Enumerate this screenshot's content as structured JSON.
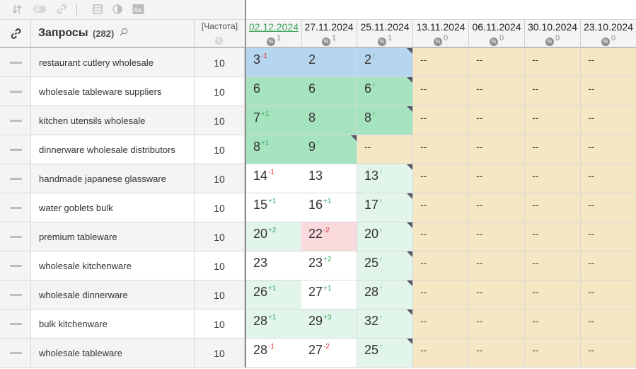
{
  "toolbar": {
    "icons": [
      "sort-icon",
      "toggle-icon",
      "link-icon",
      "table-icon",
      "contrast-icon",
      "font-icon"
    ]
  },
  "header": {
    "link_icon": "link-icon",
    "title": "Запросы",
    "count": "(282)",
    "search_icon": "magnifier-icon",
    "freq_label": "[Частота]",
    "globe_icon": "globe-icon",
    "dates": [
      {
        "label": "02.12.2024",
        "active": true,
        "pct": "1"
      },
      {
        "label": "27.11.2024",
        "active": false,
        "pct": "1"
      },
      {
        "label": "25.11.2024",
        "active": false,
        "pct": "1"
      },
      {
        "label": "13.11.2024",
        "active": false,
        "pct": "0"
      },
      {
        "label": "06.11.2024",
        "active": false,
        "pct": "0"
      },
      {
        "label": "30.10.2024",
        "active": false,
        "pct": "0"
      },
      {
        "label": "23.10.2024",
        "active": false,
        "pct": "0"
      }
    ]
  },
  "colors": {
    "blue": "#b6d6ef",
    "green": "#a6e4c0",
    "lightgreen": "#e1f5ea",
    "pink": "#fadadd",
    "tan": "#f5e6c4",
    "white": "#ffffff",
    "up_arrow": "#3aa55a",
    "down_delta": "#e0393e"
  },
  "rows": [
    {
      "query": "restaurant cutlery wholesale",
      "freq": "10",
      "positions": [
        {
          "v": "3",
          "d": "-1",
          "t": "neg",
          "bg": "blue"
        },
        {
          "v": "2",
          "d": "",
          "t": "",
          "bg": "blue"
        },
        {
          "v": "2",
          "d": "↑",
          "t": "up",
          "bg": "blue",
          "tri": true
        },
        {
          "v": "--",
          "bg": "tan"
        },
        {
          "v": "--",
          "bg": "tan"
        },
        {
          "v": "--",
          "bg": "tan"
        },
        {
          "v": "--",
          "bg": "tan"
        }
      ]
    },
    {
      "query": "wholesale tableware suppliers",
      "freq": "10",
      "positions": [
        {
          "v": "6",
          "d": "",
          "t": "",
          "bg": "green"
        },
        {
          "v": "6",
          "d": "",
          "t": "",
          "bg": "green"
        },
        {
          "v": "6",
          "d": "↑",
          "t": "up",
          "bg": "green",
          "tri": true
        },
        {
          "v": "--",
          "bg": "tan"
        },
        {
          "v": "--",
          "bg": "tan"
        },
        {
          "v": "--",
          "bg": "tan"
        },
        {
          "v": "--",
          "bg": "tan"
        }
      ]
    },
    {
      "query": "kitchen utensils wholesale",
      "freq": "10",
      "positions": [
        {
          "v": "7",
          "d": "+1",
          "t": "pos",
          "bg": "green"
        },
        {
          "v": "8",
          "d": "",
          "t": "",
          "bg": "green"
        },
        {
          "v": "8",
          "d": "↑",
          "t": "up",
          "bg": "green",
          "tri": true
        },
        {
          "v": "--",
          "bg": "tan"
        },
        {
          "v": "--",
          "bg": "tan"
        },
        {
          "v": "--",
          "bg": "tan"
        },
        {
          "v": "--",
          "bg": "tan"
        }
      ]
    },
    {
      "query": "dinnerware wholesale distributors",
      "freq": "10",
      "positions": [
        {
          "v": "8",
          "d": "+1",
          "t": "pos",
          "bg": "green"
        },
        {
          "v": "9",
          "d": "↑",
          "t": "up",
          "bg": "green",
          "tri": true
        },
        {
          "v": "--",
          "bg": "tan"
        },
        {
          "v": "--",
          "bg": "tan"
        },
        {
          "v": "--",
          "bg": "tan"
        },
        {
          "v": "--",
          "bg": "tan"
        },
        {
          "v": "--",
          "bg": "tan"
        }
      ]
    },
    {
      "query": "handmade japanese glassware",
      "freq": "10",
      "positions": [
        {
          "v": "14",
          "d": "-1",
          "t": "neg",
          "bg": "white"
        },
        {
          "v": "13",
          "d": "",
          "t": "",
          "bg": "white"
        },
        {
          "v": "13",
          "d": "↑",
          "t": "up",
          "bg": "lightgreen",
          "tri": true
        },
        {
          "v": "--",
          "bg": "tan"
        },
        {
          "v": "--",
          "bg": "tan"
        },
        {
          "v": "--",
          "bg": "tan"
        },
        {
          "v": "--",
          "bg": "tan"
        }
      ]
    },
    {
      "query": "water goblets bulk",
      "freq": "10",
      "positions": [
        {
          "v": "15",
          "d": "+1",
          "t": "pos",
          "bg": "white"
        },
        {
          "v": "16",
          "d": "+1",
          "t": "pos",
          "bg": "white"
        },
        {
          "v": "17",
          "d": "↑",
          "t": "up",
          "bg": "lightgreen",
          "tri": true
        },
        {
          "v": "--",
          "bg": "tan"
        },
        {
          "v": "--",
          "bg": "tan"
        },
        {
          "v": "--",
          "bg": "tan"
        },
        {
          "v": "--",
          "bg": "tan"
        }
      ]
    },
    {
      "query": "premium tableware",
      "freq": "10",
      "positions": [
        {
          "v": "20",
          "d": "+2",
          "t": "pos",
          "bg": "lightgreen"
        },
        {
          "v": "22",
          "d": "-2",
          "t": "neg",
          "bg": "pink"
        },
        {
          "v": "20",
          "d": "↑",
          "t": "up",
          "bg": "lightgreen",
          "tri": true
        },
        {
          "v": "--",
          "bg": "tan"
        },
        {
          "v": "--",
          "bg": "tan"
        },
        {
          "v": "--",
          "bg": "tan"
        },
        {
          "v": "--",
          "bg": "tan"
        }
      ]
    },
    {
      "query": "wholesale kitchenware",
      "freq": "10",
      "positions": [
        {
          "v": "23",
          "d": "",
          "t": "",
          "bg": "white"
        },
        {
          "v": "23",
          "d": "+2",
          "t": "pos",
          "bg": "white"
        },
        {
          "v": "25",
          "d": "↑",
          "t": "up",
          "bg": "lightgreen",
          "tri": true
        },
        {
          "v": "--",
          "bg": "tan"
        },
        {
          "v": "--",
          "bg": "tan"
        },
        {
          "v": "--",
          "bg": "tan"
        },
        {
          "v": "--",
          "bg": "tan"
        }
      ]
    },
    {
      "query": "wholesale dinnerware",
      "freq": "10",
      "positions": [
        {
          "v": "26",
          "d": "+1",
          "t": "pos",
          "bg": "lightgreen"
        },
        {
          "v": "27",
          "d": "+1",
          "t": "pos",
          "bg": "white"
        },
        {
          "v": "28",
          "d": "↑",
          "t": "up",
          "bg": "lightgreen",
          "tri": true
        },
        {
          "v": "--",
          "bg": "tan"
        },
        {
          "v": "--",
          "bg": "tan"
        },
        {
          "v": "--",
          "bg": "tan"
        },
        {
          "v": "--",
          "bg": "tan"
        }
      ]
    },
    {
      "query": "bulk kitchenware",
      "freq": "10",
      "positions": [
        {
          "v": "28",
          "d": "+1",
          "t": "pos",
          "bg": "lightgreen"
        },
        {
          "v": "29",
          "d": "+3",
          "t": "pos",
          "bg": "lightgreen"
        },
        {
          "v": "32",
          "d": "↑",
          "t": "up",
          "bg": "lightgreen",
          "tri": true
        },
        {
          "v": "--",
          "bg": "tan"
        },
        {
          "v": "--",
          "bg": "tan"
        },
        {
          "v": "--",
          "bg": "tan"
        },
        {
          "v": "--",
          "bg": "tan"
        }
      ]
    },
    {
      "query": "wholesale tableware",
      "freq": "10",
      "positions": [
        {
          "v": "28",
          "d": "-1",
          "t": "neg",
          "bg": "white"
        },
        {
          "v": "27",
          "d": "-2",
          "t": "neg",
          "bg": "white"
        },
        {
          "v": "25",
          "d": "↑",
          "t": "up",
          "bg": "lightgreen",
          "tri": true
        },
        {
          "v": "--",
          "bg": "tan"
        },
        {
          "v": "--",
          "bg": "tan"
        },
        {
          "v": "--",
          "bg": "tan"
        },
        {
          "v": "--",
          "bg": "tan"
        }
      ]
    }
  ]
}
